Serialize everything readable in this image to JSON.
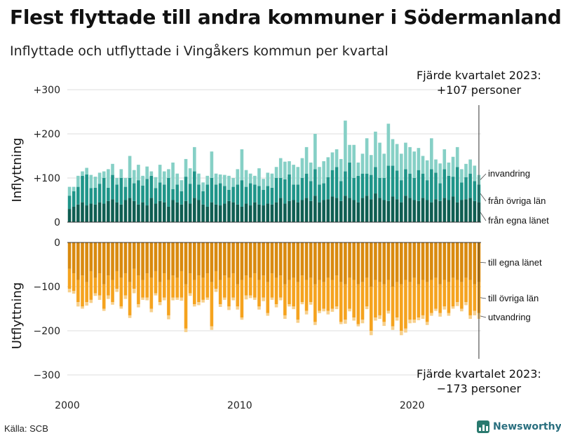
{
  "title": "Flest flyttade till andra kommuner i Södermanland",
  "subtitle": "Inflyttade och utflyttade i Vingåkers kommun per kvartal",
  "source": "Källa: SCB",
  "logo_text": "Newsworthy",
  "colors": {
    "in_egna": "#0f5e52",
    "in_ovriga": "#1f9589",
    "in_invandring": "#86d0c6",
    "ut_egna": "#d98a0f",
    "ut_ovriga": "#f5a31f",
    "ut_utvandring": "#f7d08c",
    "grid": "#dddddd",
    "text": "#111111"
  },
  "chart_data": {
    "type": "bar",
    "subtype": "stacked-diverging",
    "x_start": "2000 Q1",
    "x_end": "2023 Q4",
    "x_ticks": [
      {
        "year": 2000,
        "label": "2000"
      },
      {
        "year": 2010,
        "label": "2010"
      },
      {
        "year": 2020,
        "label": "2020"
      }
    ],
    "in_panel": {
      "ylabel": "Inflyttning",
      "ylim": [
        0,
        300
      ],
      "ticks": [
        {
          "value": 300,
          "label": "+300"
        },
        {
          "value": 200,
          "label": "+200"
        },
        {
          "value": 100,
          "label": "+100"
        },
        {
          "value": 0,
          "label": "0"
        }
      ],
      "annotation": [
        "Fjärde kvartalet 2023:",
        "+107 personer"
      ],
      "legend": [
        {
          "key": "invandring",
          "label": "invandring"
        },
        {
          "key": "ovriga",
          "label": "från övriga län"
        },
        {
          "key": "egna",
          "label": "från egna länet"
        }
      ],
      "series": [
        {
          "name": "från egna länet",
          "key": "egna",
          "values": [
            30,
            35,
            40,
            45,
            38,
            42,
            40,
            45,
            42,
            48,
            52,
            45,
            40,
            50,
            55,
            48,
            40,
            45,
            38,
            55,
            42,
            48,
            45,
            35,
            50,
            45,
            40,
            48,
            42,
            55,
            50,
            40,
            35,
            45,
            40,
            38,
            42,
            48,
            45,
            40,
            35,
            42,
            38,
            45,
            40,
            38,
            42,
            40,
            45,
            55,
            42,
            48,
            50,
            45,
            50,
            55,
            48,
            60,
            45,
            50,
            52,
            58,
            55,
            48,
            60,
            55,
            50,
            45,
            55,
            60,
            52,
            65,
            55,
            50,
            48,
            58,
            52,
            45,
            60,
            55,
            50,
            48,
            55,
            50,
            45,
            52,
            48,
            55,
            50,
            58,
            45,
            50,
            52,
            55,
            48,
            45
          ]
        },
        {
          "name": "från övriga län",
          "key": "ovriga",
          "values": [
            30,
            35,
            40,
            60,
            70,
            35,
            38,
            42,
            58,
            30,
            55,
            40,
            60,
            30,
            45,
            40,
            55,
            38,
            60,
            50,
            35,
            42,
            40,
            65,
            25,
            40,
            30,
            55,
            45,
            60,
            35,
            30,
            50,
            55,
            45,
            50,
            40,
            25,
            35,
            45,
            60,
            38,
            50,
            40,
            42,
            35,
            40,
            38,
            55,
            45,
            55,
            60,
            35,
            40,
            50,
            55,
            45,
            60,
            40,
            38,
            50,
            60,
            70,
            45,
            55,
            80,
            50,
            60,
            55,
            50,
            55,
            60,
            45,
            50,
            80,
            70,
            65,
            50,
            60,
            55,
            50,
            70,
            55,
            45,
            75,
            60,
            40,
            65,
            55,
            45,
            80,
            40,
            50,
            55,
            45,
            40
          ]
        },
        {
          "name": "invandring",
          "key": "invandring",
          "values": [
            20,
            10,
            25,
            10,
            15,
            30,
            25,
            25,
            15,
            42,
            25,
            15,
            20,
            20,
            50,
            30,
            35,
            22,
            28,
            10,
            25,
            40,
            30,
            20,
            60,
            25,
            25,
            40,
            35,
            55,
            25,
            20,
            20,
            60,
            25,
            20,
            25,
            32,
            20,
            35,
            70,
            38,
            22,
            20,
            40,
            25,
            30,
            32,
            25,
            45,
            40,
            30,
            45,
            40,
            45,
            60,
            42,
            80,
            40,
            50,
            45,
            40,
            40,
            50,
            115,
            40,
            75,
            30,
            45,
            80,
            45,
            80,
            80,
            55,
            95,
            60,
            60,
            60,
            60,
            60,
            60,
            50,
            40,
            45,
            70,
            30,
            45,
            45,
            30,
            45,
            45,
            30,
            30,
            32,
            35,
            22
          ]
        }
      ]
    },
    "out_panel": {
      "ylabel": "Utflyttning",
      "ylim": [
        -300,
        0
      ],
      "ticks": [
        {
          "value": 0,
          "label": "0"
        },
        {
          "value": -100,
          "label": "−100"
        },
        {
          "value": -200,
          "label": "−200"
        },
        {
          "value": -300,
          "label": "−300"
        }
      ],
      "annotation": [
        "Fjärde kvartalet 2023:",
        "−173 personer"
      ],
      "legend": [
        {
          "key": "egna",
          "label": "till egna länet"
        },
        {
          "key": "ovriga",
          "label": "till övriga län"
        },
        {
          "key": "utvandring",
          "label": "utvandring"
        }
      ],
      "series": [
        {
          "name": "till egna länet",
          "key": "egna",
          "values": [
            -60,
            -70,
            -85,
            -75,
            -90,
            -65,
            -80,
            -70,
            -95,
            -75,
            -85,
            -65,
            -80,
            -70,
            -90,
            -60,
            -75,
            -85,
            -70,
            -80,
            -65,
            -90,
            -70,
            -85,
            -75,
            -80,
            -65,
            -95,
            -70,
            -85,
            -75,
            -80,
            -70,
            -90,
            -65,
            -85,
            -75,
            -80,
            -70,
            -95,
            -85,
            -75,
            -80,
            -70,
            -85,
            -75,
            -90,
            -70,
            -80,
            -75,
            -95,
            -85,
            -80,
            -90,
            -75,
            -85,
            -80,
            -95,
            -85,
            -90,
            -80,
            -85,
            -75,
            -90,
            -95,
            -80,
            -85,
            -95,
            -90,
            -80,
            -100,
            -85,
            -90,
            -95,
            -85,
            -100,
            -90,
            -95,
            -85,
            -90,
            -80,
            -95,
            -85,
            -90,
            -85,
            -80,
            -95,
            -85,
            -90,
            -80,
            -85,
            -90,
            -80,
            -85,
            -95,
            -90
          ]
        },
        {
          "name": "till övriga län",
          "key": "ovriga",
          "values": [
            -45,
            -40,
            -50,
            -70,
            -45,
            -65,
            -35,
            -50,
            -55,
            -45,
            -50,
            -40,
            -65,
            -50,
            -75,
            -45,
            -65,
            -40,
            -55,
            -70,
            -50,
            -45,
            -55,
            -80,
            -50,
            -45,
            -60,
            -100,
            -45,
            -55,
            -60,
            -50,
            -55,
            -100,
            -40,
            -55,
            -50,
            -65,
            -55,
            -50,
            -85,
            -45,
            -40,
            -55,
            -60,
            -50,
            -70,
            -55,
            -60,
            -50,
            -70,
            -55,
            -65,
            -85,
            -60,
            -70,
            -55,
            -85,
            -70,
            -60,
            -75,
            -65,
            -70,
            -90,
            -80,
            -70,
            -85,
            -90,
            -85,
            -65,
            -100,
            -85,
            -75,
            -85,
            -70,
            -90,
            -80,
            -105,
            -110,
            -85,
            -95,
            -75,
            -80,
            -90,
            -75,
            -70,
            -65,
            -60,
            -70,
            -65,
            -50,
            -60,
            -55,
            -80,
            -60,
            -70
          ]
        },
        {
          "name": "utvandring",
          "key": "utvandring",
          "values": [
            -8,
            -6,
            -10,
            -5,
            -8,
            -7,
            -6,
            -10,
            -5,
            -8,
            -6,
            -7,
            -5,
            -8,
            -6,
            -10,
            -7,
            -5,
            -6,
            -8,
            -5,
            -7,
            -6,
            -9,
            -6,
            -5,
            -7,
            -8,
            -6,
            -5,
            -7,
            -6,
            -5,
            -8,
            -7,
            -6,
            -5,
            -8,
            -6,
            -7,
            -5,
            -9,
            -6,
            -5,
            -7,
            -8,
            -6,
            -5,
            -7,
            -6,
            -8,
            -5,
            -6,
            -7,
            -5,
            -8,
            -6,
            -7,
            -5,
            -6,
            -8,
            -7,
            -6,
            -5,
            -9,
            -6,
            -7,
            -5,
            -8,
            -6,
            -10,
            -7,
            -8,
            -9,
            -6,
            -8,
            -7,
            -10,
            -9,
            -8,
            -7,
            -6,
            -8,
            -7,
            -6,
            -5,
            -8,
            -7,
            -6,
            -5,
            -9,
            -6,
            -7,
            -8,
            -10,
            -13
          ]
        }
      ]
    }
  }
}
